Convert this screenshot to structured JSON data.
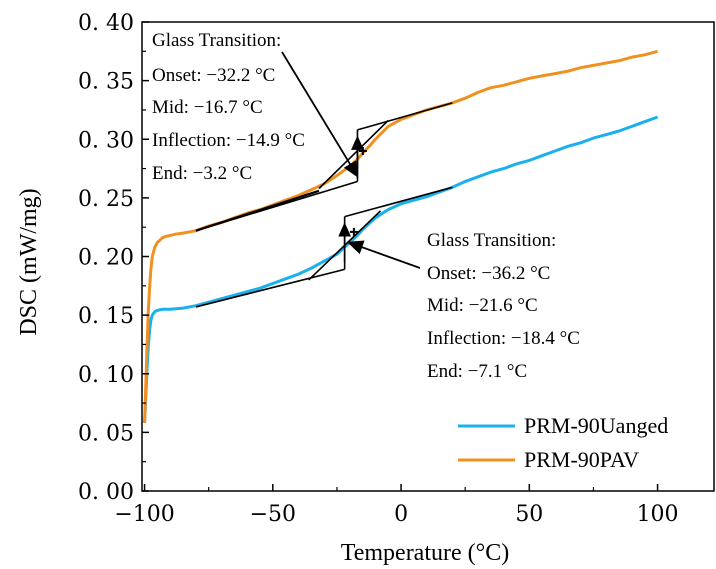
{
  "chart_data": {
    "type": "line",
    "xlabel": "Temperature (°C)",
    "ylabel": "DSC (mW/mg)",
    "xlim": [
      -101,
      122
    ],
    "ylim": [
      0.0,
      0.4
    ],
    "xticks": [
      -100,
      -50,
      0,
      50,
      100
    ],
    "yticks": [
      0.0,
      0.05,
      0.1,
      0.15,
      0.2,
      0.25,
      0.3,
      0.35,
      0.4
    ],
    "x_tick_labels": [
      "−100",
      "−50",
      "0",
      "50",
      "100"
    ],
    "y_tick_labels": [
      "0. 00",
      "0. 05",
      "0. 10",
      "0. 15",
      "0. 20",
      "0. 25",
      "0. 30",
      "0. 35",
      "0. 40"
    ],
    "grid": false,
    "legend_position": "bottom-right",
    "series": [
      {
        "name": "PRM-90Uanged",
        "color": "#1ab0f0",
        "x": [
          -100,
          -99.5,
          -99,
          -98.5,
          -98,
          -97.5,
          -97,
          -96,
          -95,
          -93,
          -90,
          -85,
          -80,
          -75,
          -70,
          -65,
          -60,
          -55,
          -50,
          -45,
          -40,
          -35,
          -30,
          -25,
          -22,
          -20,
          -17,
          -15,
          -12,
          -10,
          -5,
          0,
          5,
          10,
          15,
          20,
          25,
          30,
          35,
          40,
          45,
          50,
          55,
          60,
          65,
          70,
          75,
          80,
          85,
          90,
          95,
          100
        ],
        "y": [
          0.058,
          0.08,
          0.105,
          0.125,
          0.138,
          0.146,
          0.15,
          0.153,
          0.154,
          0.155,
          0.155,
          0.156,
          0.158,
          0.161,
          0.164,
          0.167,
          0.17,
          0.173,
          0.177,
          0.181,
          0.185,
          0.19,
          0.196,
          0.202,
          0.208,
          0.212,
          0.218,
          0.223,
          0.229,
          0.233,
          0.24,
          0.245,
          0.248,
          0.251,
          0.255,
          0.259,
          0.264,
          0.268,
          0.272,
          0.275,
          0.279,
          0.282,
          0.286,
          0.29,
          0.294,
          0.297,
          0.301,
          0.304,
          0.307,
          0.311,
          0.315,
          0.319
        ]
      },
      {
        "name": "PRM-90PAV",
        "color": "#f0901e",
        "x": [
          -100,
          -99.5,
          -99,
          -98.5,
          -98,
          -97.5,
          -97,
          -96,
          -95,
          -94,
          -93,
          -92,
          -90,
          -88,
          -85,
          -80,
          -75,
          -70,
          -65,
          -60,
          -55,
          -50,
          -45,
          -40,
          -35,
          -30,
          -25,
          -20,
          -17,
          -15,
          -12,
          -10,
          -5,
          0,
          5,
          10,
          15,
          20,
          25,
          30,
          35,
          40,
          45,
          50,
          55,
          60,
          65,
          70,
          75,
          80,
          85,
          90,
          95,
          100
        ],
        "y": [
          0.058,
          0.09,
          0.125,
          0.155,
          0.175,
          0.19,
          0.2,
          0.208,
          0.212,
          0.214,
          0.216,
          0.217,
          0.218,
          0.219,
          0.22,
          0.222,
          0.226,
          0.229,
          0.233,
          0.237,
          0.24,
          0.244,
          0.248,
          0.252,
          0.257,
          0.262,
          0.269,
          0.277,
          0.283,
          0.288,
          0.295,
          0.3,
          0.311,
          0.317,
          0.321,
          0.325,
          0.328,
          0.331,
          0.335,
          0.34,
          0.344,
          0.346,
          0.349,
          0.352,
          0.354,
          0.356,
          0.358,
          0.361,
          0.363,
          0.365,
          0.367,
          0.37,
          0.372,
          0.375
        ]
      }
    ],
    "annotations": [
      {
        "target": "PRM-90PAV",
        "lines": [
          "Glass Transition:",
          "Onset: −32.2 °C",
          "Mid: −16.7 °C",
          "Inflection: −14.9 °C",
          "End: −3.2 °C"
        ],
        "onset": -32.2,
        "mid": -16.7,
        "inflection": -14.9,
        "end": -3.2
      },
      {
        "target": "PRM-90Uanged",
        "lines": [
          "Glass Transition:",
          "Onset: −36.2 °C",
          "Mid: −21.6 °C",
          "Inflection: −18.4 °C",
          "End: −7.1 °C"
        ],
        "onset": -36.2,
        "mid": -21.6,
        "inflection": -18.4,
        "end": -7.1
      }
    ]
  }
}
